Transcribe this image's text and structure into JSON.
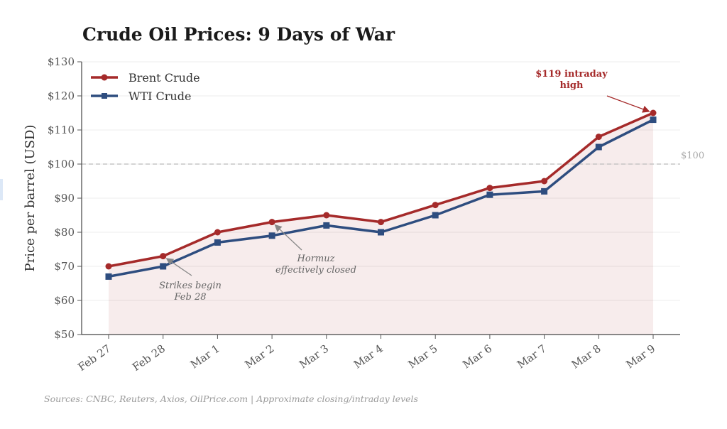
{
  "chart_data": {
    "type": "line",
    "title": "Crude Oil Prices: 9 Days of War",
    "xlabel": "",
    "ylabel": "Price per barrel (USD)",
    "categories": [
      "Feb 27",
      "Feb 28",
      "Mar 1",
      "Mar 2",
      "Mar 3",
      "Mar 4",
      "Mar 5",
      "Mar 6",
      "Mar 7",
      "Mar 8",
      "Mar 9"
    ],
    "series": [
      {
        "name": "Brent Crude",
        "color": "#a52a2a",
        "marker": "circle",
        "values": [
          70,
          73,
          80,
          83,
          85,
          83,
          88,
          93,
          95,
          108,
          115
        ]
      },
      {
        "name": "WTI Crude",
        "color": "#2e4d7f",
        "marker": "square",
        "values": [
          67,
          70,
          77,
          79,
          82,
          80,
          85,
          91,
          92,
          105,
          113
        ]
      }
    ],
    "ylim": [
      50,
      130
    ],
    "yticks": [
      50,
      60,
      70,
      80,
      90,
      100,
      110,
      120,
      130
    ],
    "ytick_labels": [
      "$50",
      "$60",
      "$70",
      "$80",
      "$90",
      "$100",
      "$110",
      "$120",
      "$130"
    ],
    "grid": "horizontal",
    "legend": {
      "placement": "top-left",
      "entries": [
        "Brent Crude",
        "WTI Crude"
      ]
    },
    "fill_under": {
      "series": "Brent Crude",
      "color": "#a52a2a",
      "opacity": 0.09
    },
    "reference_line": {
      "value": 100,
      "label": "$100",
      "style": "dashed",
      "color": "#bbbbbb"
    },
    "annotations": [
      {
        "text_lines": [
          "Strikes begin",
          "Feb 28"
        ],
        "target_category": "Feb 28",
        "target_series": "Brent Crude",
        "style": "italic-gray"
      },
      {
        "text_lines": [
          "Hormuz",
          "effectively closed"
        ],
        "target_category": "Mar 2",
        "target_series": "Brent Crude",
        "style": "italic-gray"
      },
      {
        "text_lines": [
          "$119 intraday",
          "high"
        ],
        "target_category": "Mar 9",
        "target_series": "Brent Crude",
        "style": "bold-red"
      }
    ],
    "source_note": "Sources: CNBC, Reuters, Axios, OilPrice.com  |  Approximate closing/intraday levels"
  }
}
